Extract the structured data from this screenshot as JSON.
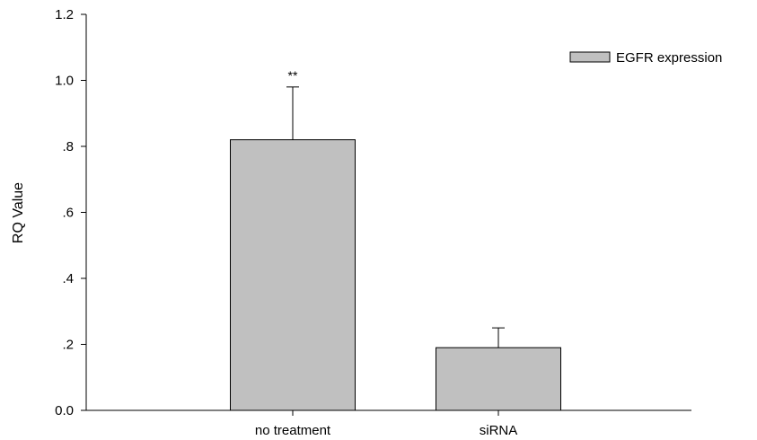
{
  "chart_data": {
    "type": "bar",
    "categories": [
      "no treatment",
      "siRNA"
    ],
    "series": [
      {
        "name": "EGFR expression",
        "values": [
          0.82,
          0.19
        ],
        "error_upper": [
          0.16,
          0.06
        ],
        "annotations": [
          "**",
          ""
        ]
      }
    ],
    "ylabel": "RQ Value",
    "xlabel": "",
    "ylim": [
      0,
      1.2
    ],
    "yticks": [
      {
        "value": 0.0,
        "label": "0.0"
      },
      {
        "value": 0.2,
        "label": ".2"
      },
      {
        "value": 0.4,
        "label": ".4"
      },
      {
        "value": 0.6,
        "label": ".6"
      },
      {
        "value": 0.8,
        "label": ".8"
      },
      {
        "value": 1.0,
        "label": "1.0"
      },
      {
        "value": 1.2,
        "label": "1.2"
      }
    ],
    "grid": false,
    "legend_position": "top-right",
    "bar_color": "#c0c0c0",
    "edge_color": "#000000"
  }
}
